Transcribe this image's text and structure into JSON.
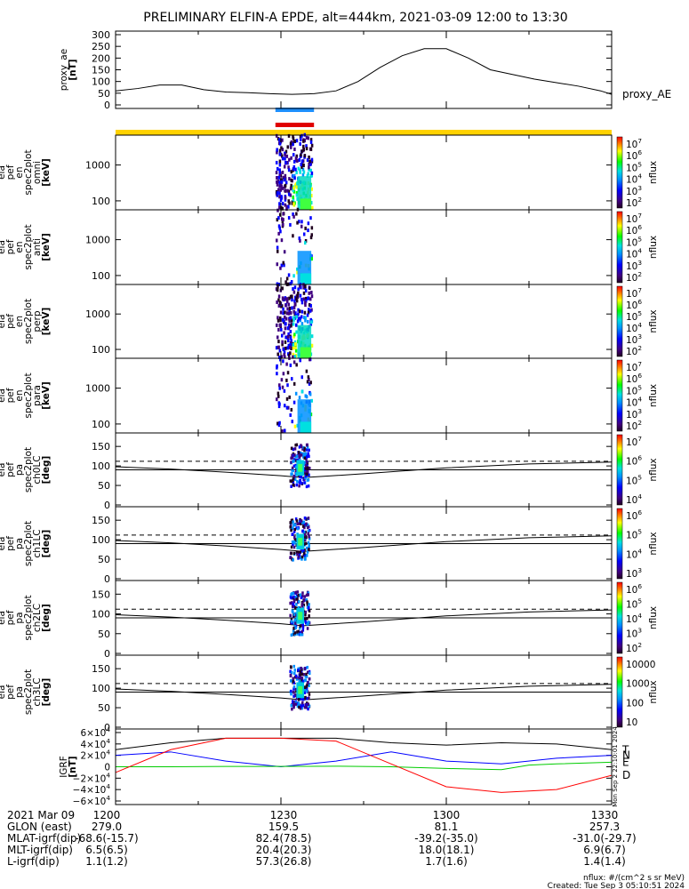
{
  "title": "PRELIMINARY ELFIN-A EPDE, alt=444km, 2021-03-09 12:00 to 13:30",
  "chart_data": {
    "type": "line",
    "xlim": [
      "12:00",
      "13:30"
    ],
    "panels": [
      {
        "id": "proxy_ae",
        "type": "line",
        "ylabel": [
          "proxy_ae",
          "[nT]"
        ],
        "yticks": [
          "300",
          "250",
          "200",
          "150",
          "100",
          "50",
          "0"
        ],
        "ylim": [
          0,
          300
        ],
        "series": [
          {
            "name": "proxy_AE",
            "x_min": [
              0,
              4,
              8,
              12,
              16,
              20,
              24,
              28,
              32,
              36,
              40,
              44,
              48,
              52,
              56,
              60,
              64,
              68,
              72,
              76,
              80,
              84,
              88,
              90
            ],
            "values": [
              60,
              70,
              85,
              85,
              65,
              55,
              52,
              48,
              45,
              48,
              60,
              100,
              160,
              210,
              240,
              240,
              200,
              150,
              130,
              110,
              95,
              80,
              60,
              45
            ]
          }
        ]
      },
      {
        "id": "spec-omni",
        "type": "heatmap",
        "ylabel": [
          "ela",
          "pef",
          "en",
          "spec2plot",
          "omni",
          "[keV]"
        ],
        "yticks": [
          "1000",
          "100"
        ],
        "yscale": "log",
        "colorbar": {
          "label": "nflux",
          "ticks": [
            "10^7",
            "10^6",
            "10^5",
            "10^4",
            "10^3",
            "10^2"
          ]
        }
      },
      {
        "id": "spec-anti",
        "type": "heatmap",
        "ylabel": [
          "ela",
          "pef",
          "en",
          "spec2plot",
          "anti",
          "[keV]"
        ],
        "yticks": [
          "1000",
          "100"
        ],
        "yscale": "log",
        "colorbar": {
          "label": "nflux",
          "ticks": [
            "10^7",
            "10^6",
            "10^5",
            "10^4",
            "10^3",
            "10^2"
          ]
        }
      },
      {
        "id": "spec-perp",
        "type": "heatmap",
        "ylabel": [
          "ela",
          "pef",
          "en",
          "spec2plot",
          "perp",
          "[keV]"
        ],
        "yticks": [
          "1000",
          "100"
        ],
        "yscale": "log",
        "colorbar": {
          "label": "nflux",
          "ticks": [
            "10^7",
            "10^6",
            "10^5",
            "10^4",
            "10^3",
            "10^2"
          ]
        }
      },
      {
        "id": "spec-para",
        "type": "heatmap",
        "ylabel": [
          "ela",
          "pef",
          "en",
          "spec2plot",
          "para",
          "[keV]"
        ],
        "yticks": [
          "1000",
          "100"
        ],
        "yscale": "log",
        "colorbar": {
          "label": "nflux",
          "ticks": [
            "10^7",
            "10^6",
            "10^5",
            "10^4",
            "10^3",
            "10^2"
          ]
        }
      },
      {
        "id": "pa-ch0",
        "type": "heatmap",
        "ylabel": [
          "ela",
          "pef",
          "pa",
          "spec2plot",
          "ch0LC",
          "[deg]"
        ],
        "yticks": [
          "150",
          "100",
          "50",
          "0"
        ],
        "ylim": [
          0,
          180
        ],
        "colorbar": {
          "label": "nflux",
          "ticks": [
            "10^7",
            "10^6",
            "10^5",
            "10^4"
          ]
        }
      },
      {
        "id": "pa-ch1",
        "type": "heatmap",
        "ylabel": [
          "ela",
          "pef",
          "pa",
          "spec2plot",
          "ch1LC",
          "[deg]"
        ],
        "yticks": [
          "150",
          "100",
          "50",
          "0"
        ],
        "ylim": [
          0,
          180
        ],
        "colorbar": {
          "label": "nflux",
          "ticks": [
            "10^6",
            "10^5",
            "10^4",
            "10^3"
          ]
        }
      },
      {
        "id": "pa-ch2",
        "type": "heatmap",
        "ylabel": [
          "ela",
          "pef",
          "pa",
          "spec2plot",
          "ch2LC",
          "[deg]"
        ],
        "yticks": [
          "150",
          "100",
          "50",
          "0"
        ],
        "ylim": [
          0,
          180
        ],
        "colorbar": {
          "label": "nflux",
          "ticks": [
            "10^6",
            "10^5",
            "10^4",
            "10^3",
            "10^2"
          ]
        }
      },
      {
        "id": "pa-ch3",
        "type": "heatmap",
        "ylabel": [
          "ela",
          "pef",
          "pa",
          "spec2plot",
          "ch3LC",
          "[deg]"
        ],
        "yticks": [
          "150",
          "100",
          "50",
          "0"
        ],
        "ylim": [
          0,
          180
        ],
        "colorbar": {
          "label": "nflux",
          "ticks": [
            "10000",
            "1000",
            "100",
            "10"
          ]
        }
      },
      {
        "id": "igrf",
        "type": "line",
        "ylabel": [
          "IGRF",
          "[nT]"
        ],
        "yticks": [
          "6×10^4",
          "4×10^4",
          "2×10^4",
          "0",
          "−2×10^4",
          "−4×10^4",
          "−6×10^4"
        ],
        "ylim": [
          -60000,
          60000
        ],
        "series": [
          {
            "name": "T",
            "color": "#000000",
            "x_min": [
              0,
              10,
              20,
              30,
              40,
              50,
              60,
              70,
              80,
              90
            ],
            "values": [
              30000,
              42000,
              50000,
              50000,
              50000,
              42000,
              38000,
              42000,
              40000,
              30000
            ]
          },
          {
            "name": "N",
            "color": "#0000ff",
            "x_min": [
              0,
              10,
              20,
              30,
              40,
              50,
              60,
              70,
              80,
              90
            ],
            "values": [
              20000,
              26000,
              10000,
              0,
              10000,
              26000,
              10000,
              5000,
              15000,
              20000
            ]
          },
          {
            "name": "E",
            "color": "#00cc00",
            "x_min": [
              0,
              10,
              20,
              30,
              40,
              50,
              60,
              70,
              75,
              80,
              90
            ],
            "values": [
              0,
              0,
              500,
              500,
              1000,
              0,
              -3000,
              -5000,
              3000,
              5000,
              8000
            ]
          },
          {
            "name": "D",
            "color": "#ff0000",
            "x_min": [
              0,
              10,
              20,
              30,
              40,
              50,
              60,
              70,
              80,
              90
            ],
            "values": [
              -10000,
              30000,
              50000,
              50000,
              45000,
              5000,
              -35000,
              -45000,
              -40000,
              -15000
            ]
          }
        ]
      }
    ],
    "xaxis_rows": [
      {
        "label": "2021 Mar 09",
        "values": [
          "1200",
          "1230",
          "1300",
          "1330"
        ]
      },
      {
        "label": "GLON (east)",
        "values": [
          "279.0",
          "159.5",
          "81.1",
          "257.3"
        ]
      },
      {
        "label": "MLAT-igrf(dip)",
        "values": [
          "-68.6(-15.7)",
          "82.4(78.5)",
          "-39.2(-35.0)",
          "-31.0(-29.7)"
        ]
      },
      {
        "label": "MLT-igrf(dip)",
        "values": [
          "6.5(6.5)",
          "20.4(20.3)",
          "18.0(18.1)",
          "6.9(6.7)"
        ]
      },
      {
        "label": "L-igrf(dip)",
        "values": [
          "1.1(1.2)",
          "57.3(26.8)",
          "1.7(1.6)",
          "1.4(1.4)"
        ]
      }
    ],
    "footer": {
      "units": "nflux: #/(cm^2 s sr MeV)",
      "created": "Created: Tue Sep  3 05:10:51 2024"
    },
    "side_text": "Mon Sep  2 22:10:01 2024"
  },
  "colors": {
    "orbit_bar": "#ffd200",
    "marker_blue": "#1e90ff",
    "marker_red": "#e00000",
    "colorbar": [
      "#ff0000",
      "#ff8000",
      "#ffff00",
      "#00ff00",
      "#00e0e0",
      "#0090ff",
      "#0000ff",
      "#400080",
      "#200020"
    ]
  }
}
